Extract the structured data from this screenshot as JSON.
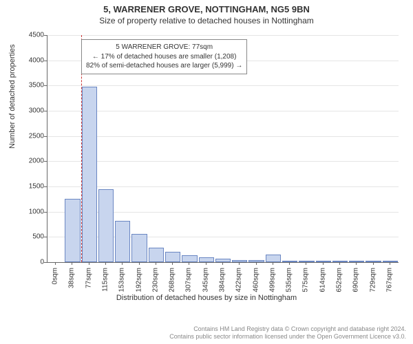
{
  "title": "5, WARRENER GROVE, NOTTINGHAM, NG5 9BN",
  "subtitle": "Size of property relative to detached houses in Nottingham",
  "chart": {
    "type": "histogram",
    "ylabel": "Number of detached properties",
    "xlabel": "Distribution of detached houses by size in Nottingham",
    "ylim": [
      0,
      4500
    ],
    "ytick_step": 500,
    "x_categories": [
      "0sqm",
      "38sqm",
      "77sqm",
      "115sqm",
      "153sqm",
      "192sqm",
      "230sqm",
      "268sqm",
      "307sqm",
      "345sqm",
      "384sqm",
      "422sqm",
      "460sqm",
      "499sqm",
      "535sqm",
      "575sqm",
      "614sqm",
      "652sqm",
      "690sqm",
      "729sqm",
      "767sqm"
    ],
    "values": [
      0,
      1250,
      3480,
      1440,
      820,
      560,
      280,
      200,
      140,
      100,
      70,
      45,
      35,
      150,
      20,
      15,
      12,
      10,
      8,
      6,
      5
    ],
    "bar_fill": "#c8d5ee",
    "bar_stroke": "#6a86c2",
    "grid_color": "#e5e5e5",
    "marker_color": "#cc3333",
    "marker_index": 2,
    "annotation": {
      "line1": "5 WARRENER GROVE: 77sqm",
      "line2": "← 17% of detached houses are smaller (1,208)",
      "line3": "82% of semi-detached houses are larger (5,999) →"
    }
  },
  "footer": {
    "line1": "Contains HM Land Registry data © Crown copyright and database right 2024.",
    "line2": "Contains public sector information licensed under the Open Government Licence v3.0."
  }
}
